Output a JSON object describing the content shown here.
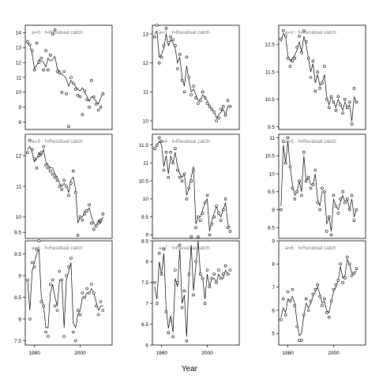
{
  "chart_data": [
    {
      "type": "scatter",
      "panel_label": "a=0 : f=Residual catch",
      "ylim": [
        7.5,
        14.5
      ],
      "yticks": [
        8,
        9,
        10,
        11,
        12,
        13,
        14
      ],
      "xlim": [
        1976,
        2014
      ],
      "xticks": [
        1980,
        2000
      ],
      "x": [
        1977,
        1978,
        1979,
        1980,
        1981,
        1982,
        1983,
        1984,
        1985,
        1986,
        1987,
        1988,
        1989,
        1990,
        1991,
        1992,
        1993,
        1994,
        1995,
        1996,
        1997,
        1998,
        1999,
        2000,
        2001,
        2002,
        2003,
        2004,
        2005,
        2006,
        2007,
        2008,
        2009,
        2010
      ],
      "obs": [
        13.4,
        13.2,
        12.8,
        11.5,
        13.3,
        12.0,
        12.3,
        11.5,
        12.8,
        11.5,
        12.5,
        13.9,
        14.2,
        11.4,
        11.3,
        10.0,
        11.4,
        9.9,
        7.7,
        11.0,
        10.6,
        10.2,
        9.8,
        9.7,
        8.5,
        10.1,
        9.5,
        9.0,
        10.8,
        9.7,
        9.2,
        8.8,
        9.0,
        9.9
      ],
      "fit": [
        13.3,
        13.1,
        12.6,
        11.6,
        11.8,
        12.2,
        12.1,
        12.0,
        11.7,
        12.3,
        12.1,
        12.2,
        12.4,
        11.6,
        11.4,
        11.2,
        11.1,
        10.9,
        10.4,
        10.8,
        10.6,
        10.4,
        10.2,
        10.1,
        10.3,
        10.0,
        9.7,
        9.4,
        9.7,
        9.6,
        9.4,
        9.2,
        9.6,
        10.0
      ]
    },
    {
      "type": "scatter",
      "panel_label": "a=3 : f=Residual catch",
      "ylim": [
        9.3,
        12.7
      ],
      "yticks": [
        9.5,
        10.0,
        11.0,
        12.0
      ],
      "xlim": [
        1976,
        2014
      ],
      "xticks": [
        1980,
        2000
      ],
      "x": [
        1977,
        1978,
        1979,
        1980,
        1981,
        1982,
        1983,
        1984,
        1985,
        1986,
        1987,
        1988,
        1989,
        1990,
        1991,
        1992,
        1993,
        1994,
        1995,
        1996,
        1997,
        1998,
        1999,
        2000,
        2001,
        2002,
        2003,
        2004,
        2005,
        2006,
        2007,
        2008,
        2009,
        2010
      ],
      "obs": [
        12.1,
        12.5,
        12.2,
        11.9,
        11.6,
        12.0,
        12.1,
        12.3,
        11.7,
        11.6,
        11.5,
        11.4,
        11.3,
        11.2,
        11.0,
        10.9,
        11.2,
        11.0,
        10.7,
        11.1,
        11.5,
        10.8,
        9.4,
        10.0,
        9.9,
        10.1,
        10.2,
        10.4,
        9.8,
        9.6,
        9.7,
        9.8,
        9.9,
        10.1
      ],
      "fit": [
        12.2,
        12.3,
        12.1,
        11.8,
        11.9,
        12.1,
        12.0,
        12.2,
        11.8,
        11.7,
        11.6,
        11.6,
        11.4,
        11.3,
        11.1,
        11.0,
        11.1,
        11.0,
        10.8,
        11.2,
        11.3,
        10.9,
        9.8,
        10.0,
        10.0,
        10.2,
        10.2,
        10.3,
        10.0,
        9.8,
        9.7,
        9.9,
        9.8,
        10.0
      ]
    },
    {
      "type": "scatter",
      "panel_label": "a=6 : f=Residual catch",
      "ylim": [
        7.4,
        9.8
      ],
      "yticks": [
        7.5,
        8.0,
        8.5,
        9.0,
        9.5
      ],
      "xlim": [
        1976,
        2014
      ],
      "xticks": [
        1980,
        2000
      ],
      "x": [
        1977,
        1978,
        1979,
        1980,
        1981,
        1982,
        1983,
        1984,
        1985,
        1986,
        1987,
        1988,
        1989,
        1990,
        1991,
        1992,
        1993,
        1994,
        1995,
        1996,
        1997,
        1998,
        1999,
        2000,
        2001,
        2002,
        2003,
        2004,
        2005,
        2006,
        2007,
        2008,
        2009,
        2010
      ],
      "obs": [
        8.9,
        8.0,
        9.3,
        9.2,
        9.6,
        9.8,
        8.4,
        8.3,
        7.7,
        7.6,
        8.8,
        8.9,
        8.3,
        8.2,
        9.1,
        8.9,
        7.6,
        9.0,
        9.2,
        9.4,
        7.7,
        7.5,
        8.2,
        8.1,
        8.6,
        8.5,
        8.7,
        8.6,
        8.8,
        8.6,
        8.3,
        8.1,
        8.4,
        8.2
      ],
      "fit": [
        8.9,
        8.2,
        9.1,
        9.3,
        9.5,
        9.6,
        8.5,
        8.3,
        7.8,
        7.8,
        8.6,
        8.8,
        8.5,
        8.3,
        8.9,
        8.9,
        7.8,
        8.9,
        9.1,
        9.3,
        7.9,
        7.8,
        8.1,
        8.2,
        8.5,
        8.5,
        8.6,
        8.6,
        8.7,
        8.6,
        8.4,
        8.2,
        8.3,
        8.3
      ]
    },
    {
      "type": "scatter",
      "panel_label": "a=1 : f=Residual catch",
      "ylim": [
        9.7,
        13.3
      ],
      "yticks": [
        10.0,
        11.0,
        12.0,
        13.0
      ],
      "xlim": [
        1976,
        2014
      ],
      "xticks": [
        1980,
        2000
      ],
      "x": [
        1977,
        1978,
        1979,
        1980,
        1981,
        1982,
        1983,
        1984,
        1985,
        1986,
        1987,
        1988,
        1989,
        1990,
        1991,
        1992,
        1993,
        1994,
        1995,
        1996,
        1997,
        1998,
        1999,
        2000,
        2001,
        2002,
        2003,
        2004,
        2005,
        2006,
        2007,
        2008,
        2009,
        2010
      ],
      "obs": [
        12.9,
        13.3,
        12.0,
        12.2,
        12.6,
        13.2,
        12.7,
        12.9,
        12.8,
        12.6,
        11.8,
        12.3,
        11.4,
        11.0,
        12.2,
        11.5,
        10.9,
        11.2,
        10.8,
        10.6,
        10.7,
        11.0,
        10.8,
        10.6,
        10.5,
        10.4,
        10.3,
        10.0,
        10.1,
        10.4,
        10.5,
        10.2,
        10.7,
        10.5
      ],
      "fit": [
        13.0,
        13.1,
        12.2,
        12.3,
        12.5,
        13.0,
        12.6,
        12.8,
        12.7,
        12.5,
        12.0,
        12.2,
        11.5,
        11.2,
        11.9,
        11.4,
        11.0,
        11.1,
        10.9,
        10.7,
        10.7,
        10.9,
        10.8,
        10.7,
        10.5,
        10.4,
        10.3,
        10.1,
        10.2,
        10.3,
        10.4,
        10.2,
        10.5,
        10.5
      ]
    },
    {
      "type": "scatter",
      "panel_label": "a=4 : f=Residual catch",
      "ylim": [
        8.9,
        11.8
      ],
      "yticks": [
        9.0,
        9.5,
        10.0,
        10.5,
        11.0,
        11.5
      ],
      "xlim": [
        1976,
        2014
      ],
      "xticks": [
        1980,
        2000
      ],
      "x": [
        1977,
        1978,
        1979,
        1980,
        1981,
        1982,
        1983,
        1984,
        1985,
        1986,
        1987,
        1988,
        1989,
        1990,
        1991,
        1992,
        1993,
        1994,
        1995,
        1996,
        1997,
        1998,
        1999,
        2000,
        2001,
        2002,
        2003,
        2004,
        2005,
        2006,
        2007,
        2008,
        2009,
        2010
      ],
      "obs": [
        11.4,
        11.5,
        11.7,
        11.6,
        10.8,
        11.3,
        10.6,
        11.3,
        11.0,
        11.4,
        10.8,
        10.6,
        10.5,
        10.7,
        10.0,
        10.3,
        10.5,
        10.8,
        9.2,
        9.5,
        9.4,
        9.6,
        9.9,
        10.1,
        9.0,
        9.3,
        9.5,
        9.8,
        9.6,
        9.4,
        9.7,
        10.0,
        9.2,
        9.1
      ],
      "fit": [
        11.4,
        11.5,
        11.6,
        11.5,
        10.9,
        11.2,
        10.7,
        11.2,
        11.0,
        11.3,
        10.9,
        10.7,
        10.6,
        10.7,
        10.1,
        10.3,
        10.6,
        10.9,
        9.3,
        9.5,
        9.5,
        9.7,
        9.9,
        10.0,
        9.1,
        9.4,
        9.6,
        9.8,
        9.6,
        9.5,
        9.7,
        9.9,
        9.3,
        9.2
      ]
    },
    {
      "type": "scatter",
      "panel_label": "a=7 : f=Residual catch",
      "ylim": [
        6.0,
        8.5
      ],
      "yticks": [
        6.0,
        6.5,
        7.0,
        7.5,
        8.0,
        8.5
      ],
      "xlim": [
        1976,
        2014
      ],
      "xticks": [
        1980,
        2000
      ],
      "x": [
        1977,
        1978,
        1979,
        1980,
        1981,
        1982,
        1983,
        1984,
        1985,
        1986,
        1987,
        1988,
        1989,
        1990,
        1991,
        1992,
        1993,
        1994,
        1995,
        1996,
        1997,
        1998,
        1999,
        2000,
        2001,
        2002,
        2003,
        2004,
        2005,
        2006,
        2007,
        2008,
        2009,
        2010
      ],
      "obs": [
        7.5,
        7.0,
        8.2,
        7.7,
        8.3,
        6.8,
        6.3,
        6.6,
        6.2,
        7.8,
        7.5,
        8.4,
        6.9,
        7.3,
        6.1,
        7.7,
        8.6,
        7.2,
        8.0,
        8.6,
        7.7,
        7.6,
        7.0,
        7.8,
        7.4,
        7.6,
        7.7,
        7.5,
        7.8,
        7.6,
        7.7,
        7.9,
        7.7,
        7.8
      ],
      "fit": [
        7.4,
        7.1,
        8.0,
        7.7,
        8.2,
        6.9,
        6.4,
        6.7,
        6.3,
        7.6,
        7.4,
        8.3,
        7.0,
        7.2,
        6.2,
        7.6,
        8.4,
        7.3,
        7.9,
        8.5,
        7.7,
        7.6,
        7.1,
        7.7,
        7.4,
        7.6,
        7.6,
        7.5,
        7.7,
        7.6,
        7.6,
        7.8,
        7.7,
        7.7
      ]
    },
    {
      "type": "scatter",
      "panel_label": "a=2 : f=Residual catch",
      "ylim": [
        9.4,
        13.2
      ],
      "yticks": [
        9.5,
        10.5,
        11.5,
        12.5
      ],
      "xlim": [
        1976,
        2014
      ],
      "xticks": [
        1980,
        2000
      ],
      "x": [
        1977,
        1978,
        1979,
        1980,
        1981,
        1982,
        1983,
        1984,
        1985,
        1986,
        1987,
        1988,
        1989,
        1990,
        1991,
        1992,
        1993,
        1994,
        1995,
        1996,
        1997,
        1998,
        1999,
        2000,
        2001,
        2002,
        2003,
        2004,
        2005,
        2006,
        2007,
        2008,
        2009,
        2010
      ],
      "obs": [
        12.7,
        13.0,
        12.8,
        12.0,
        11.7,
        11.9,
        12.0,
        12.4,
        12.8,
        12.2,
        13.0,
        12.6,
        12.0,
        11.3,
        11.9,
        10.8,
        11.5,
        10.9,
        11.1,
        11.7,
        10.5,
        10.2,
        10.6,
        10.4,
        10.1,
        10.6,
        10.3,
        10.0,
        10.5,
        10.2,
        10.4,
        9.6,
        10.9,
        10.4
      ],
      "fit": [
        12.6,
        12.9,
        12.8,
        12.1,
        11.9,
        12.0,
        12.1,
        12.3,
        12.6,
        12.2,
        12.8,
        12.5,
        12.0,
        11.5,
        11.8,
        11.1,
        11.4,
        11.0,
        11.1,
        11.4,
        10.6,
        10.3,
        10.6,
        10.4,
        10.2,
        10.5,
        10.3,
        10.1,
        10.4,
        10.2,
        10.3,
        9.7,
        10.6,
        10.4
      ]
    },
    {
      "type": "scatter",
      "panel_label": "a=5 : f=Residual catch",
      "ylim": [
        8.2,
        11.1
      ],
      "yticks": [
        8.5,
        9.0,
        9.5,
        10.0,
        10.5,
        11.0
      ],
      "xlim": [
        1976,
        2014
      ],
      "xticks": [
        1980
      ],
      "x": [
        1977,
        1978,
        1979,
        1980,
        1981,
        1982,
        1983,
        1984,
        1985,
        1986,
        1987,
        1988,
        1989,
        1990,
        1991,
        1992,
        1993,
        1994,
        1995,
        1996,
        1997,
        1998,
        1999,
        2000,
        2001,
        2002,
        2003,
        2004,
        2005,
        2006,
        2007,
        2008,
        2009,
        2010
      ],
      "obs": [
        9.0,
        10.9,
        10.3,
        11.0,
        10.2,
        9.6,
        9.3,
        9.5,
        9.8,
        9.4,
        10.6,
        9.8,
        9.9,
        9.6,
        9.7,
        10.1,
        9.2,
        9.0,
        9.6,
        9.5,
        8.4,
        8.8,
        8.3,
        9.4,
        9.1,
        8.9,
        9.3,
        9.5,
        9.2,
        9.3,
        9.0,
        9.4,
        8.7,
        9.0
      ],
      "fit": [
        9.1,
        10.8,
        10.3,
        10.9,
        10.2,
        9.7,
        9.4,
        9.5,
        9.8,
        9.5,
        10.5,
        9.8,
        9.9,
        9.7,
        9.7,
        10.0,
        9.3,
        9.1,
        9.5,
        9.5,
        8.6,
        8.8,
        8.4,
        9.3,
        9.1,
        9.0,
        9.2,
        9.4,
        9.2,
        9.3,
        9.0,
        9.3,
        8.8,
        9.0
      ]
    },
    {
      "type": "scatter",
      "panel_label": "a=8 : f=Residual catch",
      "ylim": [
        4.5,
        9.0
      ],
      "yticks": [
        5,
        6,
        7,
        8,
        9
      ],
      "xlim": [
        1976,
        2014
      ],
      "xticks": [
        1980,
        2000
      ],
      "x": [
        1977,
        1978,
        1979,
        1980,
        1981,
        1982,
        1983,
        1984,
        1985,
        1986,
        1987,
        1988,
        1989,
        1990,
        1991,
        1992,
        1993,
        1994,
        1995,
        1996,
        1997,
        1998,
        1999,
        2000,
        2001,
        2002,
        2003,
        2004,
        2005,
        2006,
        2007,
        2008,
        2009,
        2010
      ],
      "obs": [
        5.6,
        6.5,
        5.8,
        6.8,
        6.4,
        6.9,
        6.2,
        5.3,
        4.7,
        4.7,
        5.8,
        6.5,
        6.0,
        6.4,
        6.7,
        6.9,
        7.1,
        6.6,
        6.2,
        6.5,
        5.9,
        5.7,
        6.4,
        6.9,
        7.1,
        7.3,
        8.0,
        7.2,
        7.4,
        8.3,
        8.0,
        7.5,
        7.6,
        7.8
      ],
      "fit": [
        5.7,
        6.1,
        5.9,
        6.5,
        6.4,
        6.6,
        6.3,
        5.5,
        4.9,
        5.0,
        5.8,
        6.3,
        6.1,
        6.3,
        6.6,
        6.8,
        7.0,
        6.7,
        6.3,
        6.4,
        6.0,
        5.9,
        6.4,
        6.8,
        7.0,
        7.3,
        7.9,
        7.4,
        7.5,
        8.2,
        8.0,
        7.6,
        7.6,
        7.7
      ]
    }
  ],
  "axes": {
    "xlabel": "Year"
  }
}
